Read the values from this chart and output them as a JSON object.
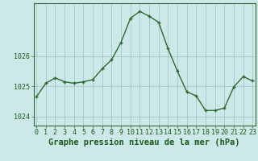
{
  "x": [
    0,
    1,
    2,
    3,
    4,
    5,
    6,
    7,
    8,
    9,
    10,
    11,
    12,
    13,
    14,
    15,
    16,
    17,
    18,
    19,
    20,
    21,
    22,
    23
  ],
  "y": [
    1024.65,
    1025.1,
    1025.28,
    1025.15,
    1025.1,
    1025.15,
    1025.22,
    1025.58,
    1025.88,
    1026.45,
    1027.25,
    1027.48,
    1027.32,
    1027.12,
    1026.25,
    1025.5,
    1024.82,
    1024.68,
    1024.2,
    1024.2,
    1024.28,
    1024.98,
    1025.32,
    1025.18
  ],
  "line_color": "#2d6a2d",
  "marker": "+",
  "marker_size": 3.5,
  "marker_lw": 1.0,
  "line_width": 1.0,
  "bg_color": "#cde8e8",
  "grid_color": "#a0c8c8",
  "xlabel": "Graphe pression niveau de la mer (hPa)",
  "xlabel_fontsize": 7.5,
  "xlabel_color": "#1a5c1a",
  "ytick_labels": [
    "1024",
    "1025",
    "1026"
  ],
  "ytick_vals": [
    1024,
    1025,
    1026
  ],
  "ylim": [
    1023.7,
    1027.75
  ],
  "xlim": [
    -0.3,
    23.3
  ],
  "tick_color": "#1a5c1a",
  "tick_fontsize": 6.0,
  "spine_color": "#2d6a2d",
  "fig_width": 3.2,
  "fig_height": 2.0,
  "dpi": 100
}
